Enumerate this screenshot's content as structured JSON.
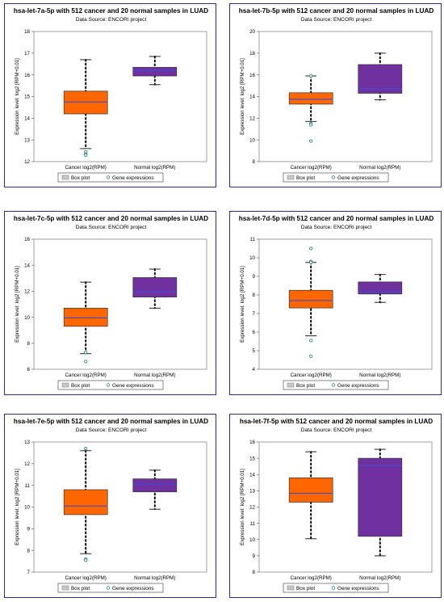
{
  "colors": {
    "cancer_box": "#ff6600",
    "normal_box": "#7030a0",
    "median_line": "#3a4fd0",
    "dot": "#000000",
    "outlier": "#2a8a8a",
    "panel_border": "#2a2aa8"
  },
  "chart_data": [
    {
      "type": "box",
      "title": "hsa-let-7a-5p with 512 cancer and 20 normal samples in LUAD",
      "subtitle": "Data Source: ENCORI project",
      "ylabel": "Expression level: log2 [RPM+0.01]",
      "categories": [
        "Cancer log2(RPM)",
        "Normal log2(RPM)"
      ],
      "legend": [
        "Box plot",
        "Gene expressions"
      ],
      "ylim": [
        12,
        18
      ],
      "yticks": [
        12,
        13,
        14,
        15,
        16,
        17,
        18
      ],
      "boxes": [
        {
          "q1": 14.2,
          "median": 14.75,
          "q3": 15.25,
          "whisker_low": 12.6,
          "whisker_high": 16.7,
          "outliers": [
            12.45,
            12.35,
            12.3
          ]
        },
        {
          "q1": 15.95,
          "median": 16.2,
          "q3": 16.35,
          "whisker_low": 15.55,
          "whisker_high": 16.85,
          "outliers": []
        }
      ]
    },
    {
      "type": "box",
      "title": "hsa-let-7b-5p with 512 cancer and 20 normal samples in LUAD",
      "subtitle": "Data Source: ENCORI project",
      "ylabel": "Expression level: log2 [RPM+0.01]",
      "categories": [
        "Cancer log2(RPM)",
        "Normal log2(RPM)"
      ],
      "legend": [
        "Box plot",
        "Gene expressions"
      ],
      "ylim": [
        8,
        20
      ],
      "yticks": [
        8,
        10,
        12,
        14,
        16,
        18,
        20
      ],
      "boxes": [
        {
          "q1": 13.3,
          "median": 13.75,
          "q3": 14.35,
          "whisker_low": 11.7,
          "whisker_high": 15.9,
          "outliers": [
            15.9,
            11.5,
            11.4,
            9.9
          ]
        },
        {
          "q1": 14.3,
          "median": 14.7,
          "q3": 16.95,
          "whisker_low": 13.7,
          "whisker_high": 18.0,
          "outliers": []
        }
      ]
    },
    {
      "type": "box",
      "title": "hsa-let-7c-5p with 512 cancer and 20 normal samples in LUAD",
      "subtitle": "Data Source: ENCORI project",
      "ylabel": "Expression level: log2 [RPM+0.01]",
      "categories": [
        "Cancer log2(RPM)",
        "Normal log2(RPM)"
      ],
      "legend": [
        "Box plot",
        "Gene expressions"
      ],
      "ylim": [
        6,
        16
      ],
      "yticks": [
        6,
        8,
        10,
        12,
        14,
        16
      ],
      "boxes": [
        {
          "q1": 9.3,
          "median": 9.95,
          "q3": 10.7,
          "whisker_low": 7.2,
          "whisker_high": 12.7,
          "outliers": [
            7.3,
            6.6
          ]
        },
        {
          "q1": 11.55,
          "median": 11.95,
          "q3": 13.05,
          "whisker_low": 10.7,
          "whisker_high": 13.7,
          "outliers": []
        }
      ]
    },
    {
      "type": "box",
      "title": "hsa-let-7d-5p with 512 cancer and 20 normal samples in LUAD",
      "subtitle": "Data Source: ENCORI project",
      "ylabel": "Expression level: log2 [RPM+0.01]",
      "categories": [
        "Cancer log2(RPM)",
        "Normal log2(RPM)"
      ],
      "legend": [
        "Box plot",
        "Gene expressions"
      ],
      "ylim": [
        4,
        11
      ],
      "yticks": [
        4,
        5,
        6,
        7,
        8,
        9,
        10,
        11
      ],
      "boxes": [
        {
          "q1": 7.3,
          "median": 7.7,
          "q3": 8.25,
          "whisker_low": 5.8,
          "whisker_high": 9.75,
          "outliers": [
            10.5,
            9.8,
            9.75,
            5.55,
            4.7
          ]
        },
        {
          "q1": 8.05,
          "median": 8.15,
          "q3": 8.7,
          "whisker_low": 7.6,
          "whisker_high": 9.1,
          "outliers": []
        }
      ]
    },
    {
      "type": "box",
      "title": "hsa-let-7e-5p with 512 cancer and 20 normal samples in LUAD",
      "subtitle": "Data Source: ENCORI project",
      "ylabel": "Expression level: log2 [RPM+0.01]",
      "categories": [
        "Cancer log2(RPM)",
        "Normal log2(RPM)"
      ],
      "legend": [
        "Box plot",
        "Gene expressions"
      ],
      "ylim": [
        7,
        13
      ],
      "yticks": [
        7,
        8,
        9,
        10,
        11,
        12,
        13
      ],
      "boxes": [
        {
          "q1": 9.65,
          "median": 10.05,
          "q3": 10.8,
          "whisker_low": 7.85,
          "whisker_high": 12.6,
          "outliers": [
            12.7,
            7.6,
            7.55
          ]
        },
        {
          "q1": 10.7,
          "median": 11.05,
          "q3": 11.3,
          "whisker_low": 9.9,
          "whisker_high": 11.7,
          "outliers": []
        }
      ]
    },
    {
      "type": "box",
      "title": "hsa-let-7f-5p with 512 cancer and 20 normal samples in LUAD",
      "subtitle": "Data Source: ENCORI project",
      "ylabel": "Expression level: log2 [RPM+0.01]",
      "categories": [
        "Cancer log2(RPM)",
        "Normal log2(RPM)"
      ],
      "legend": [
        "Box plot",
        "Gene expressions"
      ],
      "ylim": [
        8,
        16
      ],
      "yticks": [
        8,
        9,
        10,
        11,
        12,
        13,
        14,
        15,
        16
      ],
      "boxes": [
        {
          "q1": 12.3,
          "median": 12.85,
          "q3": 13.8,
          "whisker_low": 10.05,
          "whisker_high": 15.4,
          "outliers": []
        },
        {
          "q1": 10.2,
          "median": 14.55,
          "q3": 15.0,
          "whisker_low": 9.0,
          "whisker_high": 15.55,
          "outliers": []
        }
      ]
    }
  ]
}
